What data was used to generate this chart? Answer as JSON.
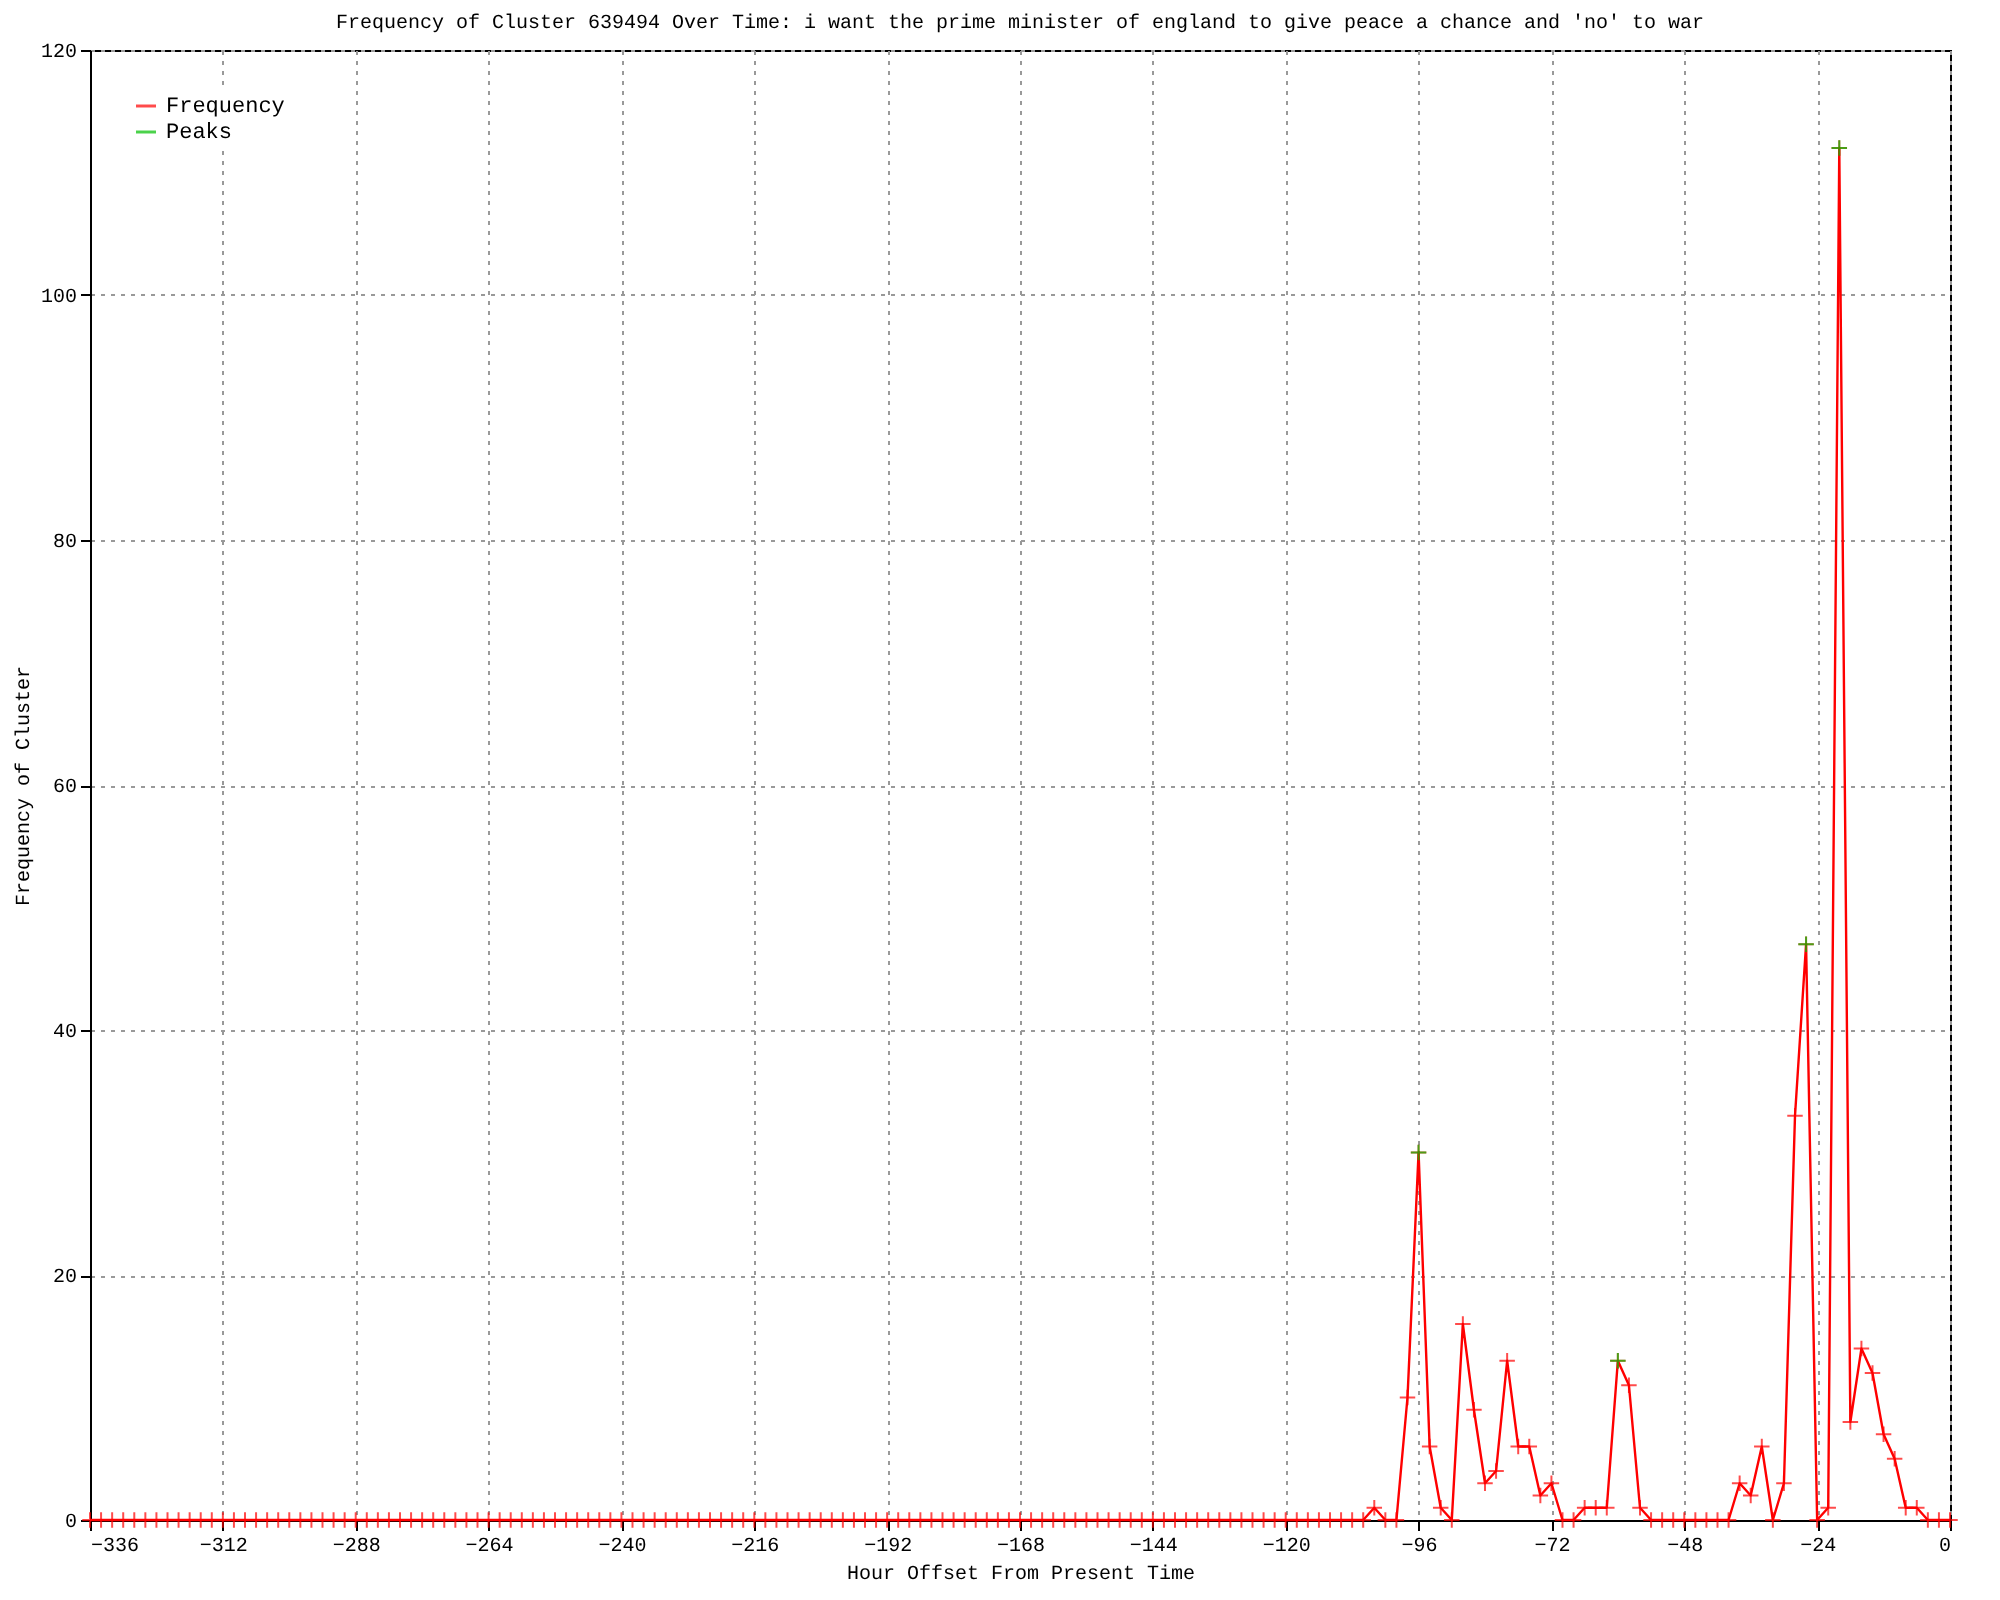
{
  "chart_data": {
    "type": "line",
    "title": "Frequency of Cluster 639494 Over Time: i want the prime minister of england to give peace a chance and 'no' to war",
    "xlabel": "Hour Offset From Present Time",
    "ylabel": "Frequency of Cluster",
    "x": [
      -336,
      -334,
      -332,
      -330,
      -328,
      -326,
      -324,
      -322,
      -320,
      -318,
      -316,
      -314,
      -312,
      -310,
      -308,
      -306,
      -304,
      -302,
      -300,
      -298,
      -296,
      -294,
      -292,
      -290,
      -288,
      -286,
      -284,
      -282,
      -280,
      -278,
      -276,
      -274,
      -272,
      -270,
      -268,
      -266,
      -264,
      -262,
      -260,
      -258,
      -256,
      -254,
      -252,
      -250,
      -248,
      -246,
      -244,
      -242,
      -240,
      -238,
      -236,
      -234,
      -232,
      -230,
      -228,
      -226,
      -224,
      -222,
      -220,
      -218,
      -216,
      -214,
      -212,
      -210,
      -208,
      -206,
      -204,
      -202,
      -200,
      -198,
      -196,
      -194,
      -192,
      -190,
      -188,
      -186,
      -184,
      -182,
      -180,
      -178,
      -176,
      -174,
      -172,
      -170,
      -168,
      -166,
      -164,
      -162,
      -160,
      -158,
      -156,
      -154,
      -152,
      -150,
      -148,
      -146,
      -144,
      -142,
      -140,
      -138,
      -136,
      -134,
      -132,
      -130,
      -128,
      -126,
      -124,
      -122,
      -120,
      -118,
      -116,
      -114,
      -112,
      -110,
      -108,
      -106,
      -104,
      -102,
      -100,
      -98,
      -96,
      -94,
      -92,
      -90,
      -88,
      -86,
      -84,
      -82,
      -80,
      -78,
      -76,
      -74,
      -72,
      -70,
      -68,
      -66,
      -64,
      -62,
      -60,
      -58,
      -56,
      -54,
      -52,
      -50,
      -48,
      -46,
      -44,
      -42,
      -40,
      -38,
      -36,
      -34,
      -32,
      -30,
      -28,
      -26,
      -24,
      -22,
      -20,
      -18,
      -16,
      -14,
      -12,
      -10,
      -8,
      -6,
      -4,
      -2,
      0
    ],
    "series": [
      {
        "name": "Frequency",
        "color": "#ff0000",
        "values": [
          0,
          0,
          0,
          0,
          0,
          0,
          0,
          0,
          0,
          0,
          0,
          0,
          0,
          0,
          0,
          0,
          0,
          0,
          0,
          0,
          0,
          0,
          0,
          0,
          0,
          0,
          0,
          0,
          0,
          0,
          0,
          0,
          0,
          0,
          0,
          0,
          0,
          0,
          0,
          0,
          0,
          0,
          0,
          0,
          0,
          0,
          0,
          0,
          0,
          0,
          0,
          0,
          0,
          0,
          0,
          0,
          0,
          0,
          0,
          0,
          0,
          0,
          0,
          0,
          0,
          0,
          0,
          0,
          0,
          0,
          0,
          0,
          0,
          0,
          0,
          0,
          0,
          0,
          0,
          0,
          0,
          0,
          0,
          0,
          0,
          0,
          0,
          0,
          0,
          0,
          0,
          0,
          0,
          0,
          0,
          0,
          0,
          0,
          0,
          0,
          0,
          0,
          0,
          0,
          0,
          0,
          0,
          0,
          0,
          0,
          0,
          0,
          0,
          0,
          0,
          0,
          1,
          0,
          0,
          10,
          30,
          6,
          1,
          0,
          16,
          9,
          3,
          4,
          13,
          6,
          6,
          2,
          3,
          0,
          0,
          1,
          1,
          1,
          13,
          11,
          1,
          0,
          0,
          0,
          0,
          0,
          0,
          0,
          0,
          3,
          2,
          6,
          0,
          3,
          33,
          47,
          0,
          1,
          112,
          8,
          14,
          12,
          7,
          5,
          1,
          1,
          0,
          0,
          0
        ]
      },
      {
        "name": "Peaks",
        "type": "scatter",
        "color": "#00c000",
        "x": [
          -96,
          -60,
          -26,
          -20
        ],
        "values": [
          30,
          13,
          47,
          112
        ]
      }
    ],
    "xlim": [
      -336,
      0
    ],
    "xticks": [
      -336,
      -312,
      -288,
      -264,
      -240,
      -216,
      -192,
      -168,
      -144,
      -120,
      -96,
      -72,
      -48,
      -24,
      0
    ],
    "ylim": [
      0,
      120
    ],
    "yticks": [
      0,
      20,
      40,
      60,
      80,
      100,
      120
    ],
    "grid": true,
    "legend": "top left",
    "marker": "cross",
    "line_style": "solid"
  }
}
